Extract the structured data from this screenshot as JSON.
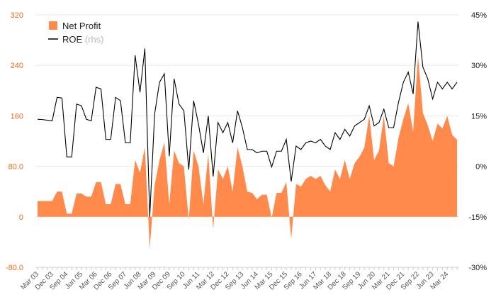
{
  "chart_data": {
    "type": "area",
    "title": "",
    "xlabel": "",
    "ylabel": "",
    "left_axis": {
      "ylim": [
        -80,
        320
      ],
      "ticks": [
        "-80.0",
        "0",
        "80.0",
        "160",
        "240",
        "320"
      ],
      "tick_values": [
        -80,
        0,
        80,
        160,
        240,
        320
      ],
      "tick_color": "#f26a21"
    },
    "right_axis": {
      "ylim": [
        -30,
        45
      ],
      "ticks": [
        "-30%",
        "-15%",
        "0%",
        "15%",
        "30%",
        "45%"
      ],
      "tick_values": [
        -30,
        -15,
        0,
        15,
        30,
        45
      ]
    },
    "x_tick_labels": [
      "Mar 03",
      "Dec 03",
      "Sep 04",
      "Jun 05",
      "Mar 06",
      "Dec 06",
      "Sep 07",
      "Jun 08",
      "Mar 09",
      "Dec 09",
      "Sep 10",
      "Jun 11",
      "Mar 12",
      "Dec 12",
      "Sep 13",
      "Jun 14",
      "Mar 15",
      "Dec 15",
      "Sep 16",
      "Jun 17",
      "Mar 18",
      "Dec 18",
      "Sep 19",
      "Jun 20",
      "Mar 21",
      "Dec 21",
      "Sep 22",
      "Jun 23",
      "Mar 24"
    ],
    "legend": {
      "placement": "top-left",
      "net_profit_label": "Net Profit",
      "roe_label": "ROE",
      "roe_suffix": "(rhs)"
    },
    "series": [
      {
        "name": "Net Profit",
        "axis": "left",
        "kind": "area",
        "color": "#ff8a4c",
        "values": [
          25,
          25,
          25,
          25,
          40,
          40,
          5,
          5,
          37,
          37,
          32,
          32,
          55,
          55,
          20,
          20,
          52,
          52,
          20,
          20,
          90,
          70,
          110,
          -50,
          50,
          90,
          118,
          20,
          105,
          85,
          80,
          -5,
          105,
          80,
          20,
          100,
          -20,
          75,
          60,
          80,
          40,
          110,
          80,
          40,
          38,
          28,
          35,
          35,
          -2,
          38,
          38,
          55,
          -35,
          52,
          48,
          60,
          65,
          60,
          65,
          50,
          40,
          75,
          60,
          90,
          60,
          85,
          95,
          110,
          160,
          90,
          105,
          160,
          85,
          80,
          125,
          155,
          180,
          135,
          255,
          165,
          145,
          120,
          148,
          140,
          160,
          130,
          122
        ]
      },
      {
        "name": "ROE",
        "axis": "right",
        "kind": "line",
        "color": "#000000",
        "values": [
          14,
          13.9,
          13.7,
          13.5,
          20.5,
          20.3,
          2.8,
          2.8,
          18.5,
          18,
          14,
          13.5,
          23.5,
          23,
          8,
          8,
          20.5,
          19.5,
          7,
          7,
          33,
          22,
          35,
          -15,
          15.5,
          25,
          27.5,
          3,
          26,
          18.5,
          16.5,
          -1,
          19.5,
          12.5,
          4,
          15,
          -3,
          13,
          10,
          13,
          7,
          16.5,
          11.5,
          5,
          5,
          4,
          4.5,
          4.5,
          -0.2,
          4.5,
          4.5,
          8,
          -4.5,
          6,
          5,
          7,
          7.5,
          7,
          8,
          6,
          5,
          10,
          8,
          11,
          9,
          12,
          13,
          14,
          18,
          12,
          13,
          17,
          11.5,
          11.5,
          19,
          25,
          28,
          21.5,
          43,
          29.5,
          26,
          20,
          25,
          23,
          25,
          23,
          25
        ]
      }
    ]
  }
}
